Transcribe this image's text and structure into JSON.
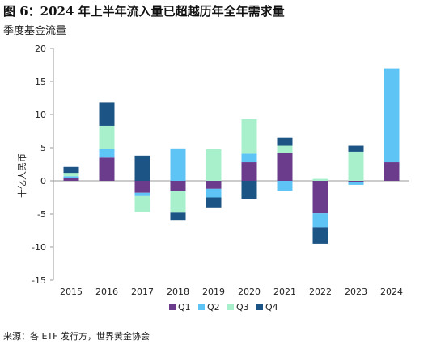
{
  "header": {
    "title": "图 6：2024 年上半年流入量已超越历年全年需求量",
    "subtitle": "季度基金流量"
  },
  "footer": {
    "source": "来源：各 ETF 发行方，世界黄金协会"
  },
  "colors": {
    "Q1": "#6b3c8c",
    "Q2": "#5ec3f5",
    "Q3": "#a8f0cc",
    "Q4": "#1c5585",
    "axis": "#999999"
  },
  "chart_data": {
    "type": "bar",
    "stacked": true,
    "categories": [
      "2015",
      "2016",
      "2017",
      "2018",
      "2019",
      "2020",
      "2021",
      "2022",
      "2023",
      "2024"
    ],
    "series": [
      {
        "name": "Q1",
        "values": [
          0.4,
          3.5,
          -1.8,
          -1.5,
          -1.2,
          2.8,
          4.2,
          -4.9,
          -0.2,
          2.8
        ]
      },
      {
        "name": "Q2",
        "values": [
          0.3,
          1.3,
          -0.5,
          4.9,
          -1.3,
          1.3,
          -1.5,
          -2.1,
          -0.4,
          14.2
        ]
      },
      {
        "name": "Q3",
        "values": [
          0.5,
          3.5,
          -2.4,
          -3.3,
          4.8,
          5.2,
          1.1,
          0.3,
          4.4,
          0
        ]
      },
      {
        "name": "Q4",
        "values": [
          0.9,
          3.6,
          3.8,
          -1.2,
          -1.5,
          -2.7,
          1.2,
          -2.5,
          0.9,
          0
        ]
      }
    ],
    "ylabel": "十亿人民币",
    "ylim": [
      -15,
      20
    ],
    "yticks": [
      -15,
      -10,
      -5,
      0,
      5,
      10,
      15,
      20
    ],
    "grid": false,
    "legend": "bottom"
  }
}
